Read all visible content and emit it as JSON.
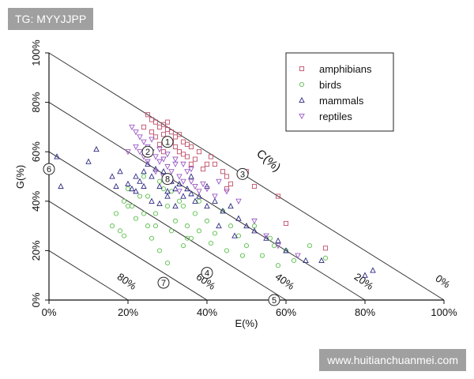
{
  "tag_text": "TG: MYYJJPP",
  "watermark_text": "www.huitianchuanmei.com",
  "chart_data": {
    "type": "scatter",
    "xlabel": "E(%)",
    "ylabel": "G(%)",
    "xlim": [
      0,
      100
    ],
    "ylim": [
      0,
      100
    ],
    "x_ticks": [
      "0%",
      "20%",
      "40%",
      "60%",
      "80%",
      "100%"
    ],
    "y_ticks": [
      "0%",
      "20%",
      "40%",
      "60%",
      "80%",
      "100%"
    ],
    "c_axis_label": "C(%)",
    "c_lines": [
      {
        "c": 0,
        "label": "0%"
      },
      {
        "c": 20,
        "label": "20%"
      },
      {
        "c": 40,
        "label": "40%"
      },
      {
        "c": 60,
        "label": "60%"
      },
      {
        "c": 80,
        "label": "80%"
      }
    ],
    "region_labels": [
      {
        "label": "1",
        "x": 30,
        "y": 64
      },
      {
        "label": "2",
        "x": 25,
        "y": 60
      },
      {
        "label": "3",
        "x": 49,
        "y": 51
      },
      {
        "label": "4",
        "x": 40,
        "y": 11
      },
      {
        "label": "5",
        "x": 57,
        "y": 0
      },
      {
        "label": "6",
        "x": 0,
        "y": 53
      },
      {
        "label": "7",
        "x": 29,
        "y": 7
      },
      {
        "label": "8",
        "x": 30,
        "y": 49
      }
    ],
    "legend": {
      "position": "top-right",
      "entries": [
        "amphibians",
        "birds",
        "mammals",
        "reptiles"
      ]
    },
    "series": [
      {
        "name": "amphibians",
        "marker": "square",
        "color": "#c0506a",
        "points": [
          [
            25,
            75
          ],
          [
            26,
            73
          ],
          [
            27,
            72
          ],
          [
            28,
            70
          ],
          [
            29,
            71
          ],
          [
            30,
            69
          ],
          [
            31,
            68
          ],
          [
            32,
            66
          ],
          [
            33,
            67
          ],
          [
            34,
            64
          ],
          [
            35,
            63
          ],
          [
            36,
            62
          ],
          [
            38,
            60
          ],
          [
            37,
            57
          ],
          [
            40,
            55
          ],
          [
            41,
            58
          ],
          [
            42,
            55
          ],
          [
            44,
            52
          ],
          [
            45,
            50
          ],
          [
            46,
            47
          ],
          [
            45,
            45
          ],
          [
            50,
            52
          ],
          [
            52,
            46
          ],
          [
            58,
            42
          ],
          [
            60,
            31
          ],
          [
            70,
            21
          ],
          [
            26,
            68
          ],
          [
            27,
            66
          ],
          [
            29,
            67
          ],
          [
            31,
            64
          ],
          [
            33,
            60
          ],
          [
            35,
            58
          ],
          [
            39,
            53
          ],
          [
            24,
            70
          ],
          [
            29,
            60
          ],
          [
            32,
            62
          ],
          [
            36,
            55
          ],
          [
            30,
            72
          ],
          [
            28,
            63
          ],
          [
            34,
            59
          ]
        ]
      },
      {
        "name": "birds",
        "marker": "circle",
        "color": "#5cbf4c",
        "points": [
          [
            16,
            30
          ],
          [
            17,
            35
          ],
          [
            18,
            28
          ],
          [
            19,
            40
          ],
          [
            20,
            45
          ],
          [
            21,
            38
          ],
          [
            22,
            33
          ],
          [
            23,
            42
          ],
          [
            24,
            50
          ],
          [
            25,
            30
          ],
          [
            26,
            25
          ],
          [
            27,
            35
          ],
          [
            28,
            20
          ],
          [
            29,
            45
          ],
          [
            30,
            38
          ],
          [
            31,
            28
          ],
          [
            32,
            32
          ],
          [
            33,
            40
          ],
          [
            34,
            22
          ],
          [
            35,
            30
          ],
          [
            36,
            25
          ],
          [
            37,
            35
          ],
          [
            38,
            28
          ],
          [
            40,
            32
          ],
          [
            42,
            27
          ],
          [
            44,
            36
          ],
          [
            46,
            30
          ],
          [
            48,
            26
          ],
          [
            50,
            22
          ],
          [
            52,
            30
          ],
          [
            54,
            18
          ],
          [
            56,
            25
          ],
          [
            57,
            22
          ],
          [
            58,
            14
          ],
          [
            60,
            20
          ],
          [
            62,
            16
          ],
          [
            66,
            22
          ],
          [
            70,
            17
          ],
          [
            20,
            38
          ],
          [
            25,
            42
          ],
          [
            28,
            48
          ],
          [
            31,
            44
          ],
          [
            34,
            38
          ],
          [
            38,
            40
          ],
          [
            41,
            23
          ],
          [
            45,
            20
          ],
          [
            49,
            18
          ],
          [
            30,
            15
          ],
          [
            35,
            25
          ],
          [
            27,
            30
          ],
          [
            24,
            35
          ],
          [
            19,
            26
          ]
        ]
      },
      {
        "name": "mammals",
        "marker": "triangle-up",
        "color": "#2d2a80",
        "points": [
          [
            2,
            58
          ],
          [
            3,
            46
          ],
          [
            10,
            56
          ],
          [
            12,
            61
          ],
          [
            16,
            50
          ],
          [
            17,
            46
          ],
          [
            18,
            52
          ],
          [
            20,
            47
          ],
          [
            21,
            45
          ],
          [
            22,
            50
          ],
          [
            23,
            48
          ],
          [
            24,
            46
          ],
          [
            25,
            55
          ],
          [
            26,
            50
          ],
          [
            27,
            53
          ],
          [
            28,
            46
          ],
          [
            29,
            52
          ],
          [
            30,
            44
          ],
          [
            31,
            48
          ],
          [
            32,
            45
          ],
          [
            33,
            47
          ],
          [
            34,
            42
          ],
          [
            35,
            45
          ],
          [
            36,
            43
          ],
          [
            37,
            40
          ],
          [
            38,
            42
          ],
          [
            40,
            38
          ],
          [
            42,
            40
          ],
          [
            44,
            36
          ],
          [
            46,
            38
          ],
          [
            48,
            33
          ],
          [
            50,
            30
          ],
          [
            52,
            28
          ],
          [
            55,
            25
          ],
          [
            58,
            24
          ],
          [
            60,
            20
          ],
          [
            65,
            16
          ],
          [
            69,
            16
          ],
          [
            80,
            10
          ],
          [
            82,
            12
          ],
          [
            26,
            40
          ],
          [
            28,
            39
          ],
          [
            30,
            42
          ],
          [
            32,
            38
          ],
          [
            24,
            52
          ],
          [
            22,
            44
          ],
          [
            36,
            50
          ],
          [
            40,
            46
          ],
          [
            43,
            30
          ],
          [
            47,
            26
          ]
        ]
      },
      {
        "name": "reptiles",
        "marker": "triangle-down",
        "color": "#9b59c4",
        "points": [
          [
            21,
            70
          ],
          [
            22,
            68
          ],
          [
            23,
            66
          ],
          [
            24,
            64
          ],
          [
            25,
            62
          ],
          [
            26,
            60
          ],
          [
            27,
            58
          ],
          [
            28,
            56
          ],
          [
            29,
            57
          ],
          [
            30,
            54
          ],
          [
            31,
            52
          ],
          [
            32,
            55
          ],
          [
            33,
            50
          ],
          [
            34,
            48
          ],
          [
            35,
            52
          ],
          [
            36,
            48
          ],
          [
            37,
            46
          ],
          [
            38,
            44
          ],
          [
            39,
            47
          ],
          [
            40,
            45
          ],
          [
            42,
            42
          ],
          [
            43,
            48
          ],
          [
            45,
            44
          ],
          [
            48,
            40
          ],
          [
            52,
            32
          ],
          [
            55,
            26
          ],
          [
            58,
            22
          ],
          [
            63,
            18
          ],
          [
            22,
            62
          ],
          [
            24,
            58
          ],
          [
            26,
            65
          ],
          [
            28,
            61
          ],
          [
            30,
            59
          ],
          [
            32,
            57
          ],
          [
            34,
            55
          ],
          [
            36,
            53
          ],
          [
            25,
            56
          ],
          [
            27,
            52
          ],
          [
            29,
            50
          ],
          [
            31,
            48
          ],
          [
            33,
            44
          ],
          [
            20,
            60
          ],
          [
            23,
            60
          ]
        ]
      }
    ]
  }
}
